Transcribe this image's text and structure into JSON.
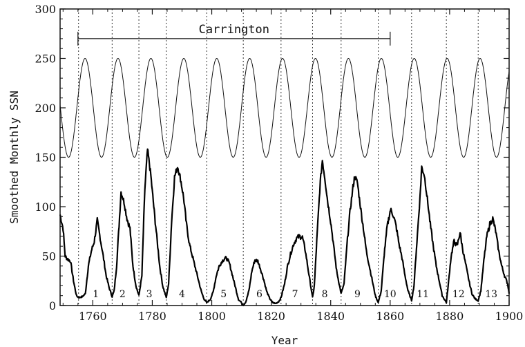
{
  "chart_data": {
    "type": "line",
    "title": "",
    "xlabel": "Year",
    "ylabel": "Smoothed Monthly SSN",
    "xlim": [
      1749,
      1900
    ],
    "ylim": [
      0,
      300
    ],
    "x_ticks": [
      1760,
      1780,
      1800,
      1820,
      1840,
      1860,
      1880,
      1900
    ],
    "x_tick_labels": [
      "1760",
      "1780",
      "1800",
      "1820",
      "1840",
      "1860",
      "1880",
      "1900"
    ],
    "y_ticks": [
      0,
      50,
      100,
      150,
      200,
      250,
      300
    ],
    "y_tick_labels": [
      "0",
      "50",
      "100",
      "150",
      "200",
      "250",
      "300"
    ],
    "grid": false,
    "cycle_boundaries": [
      1755.2,
      1766.5,
      1775.5,
      1784.7,
      1798.3,
      1810.6,
      1823.3,
      1833.9,
      1843.5,
      1856.0,
      1867.2,
      1878.9,
      1889.6
    ],
    "cycles": [
      {
        "label": "1",
        "x": 1761
      },
      {
        "label": "2",
        "x": 1770
      },
      {
        "label": "3",
        "x": 1779
      },
      {
        "label": "4",
        "x": 1790
      },
      {
        "label": "5",
        "x": 1804
      },
      {
        "label": "6",
        "x": 1816
      },
      {
        "label": "7",
        "x": 1828
      },
      {
        "label": "8",
        "x": 1838
      },
      {
        "label": "9",
        "x": 1849
      },
      {
        "label": "10",
        "x": 1860
      },
      {
        "label": "11",
        "x": 1871
      },
      {
        "label": "12",
        "x": 1883
      },
      {
        "label": "13",
        "x": 1894
      }
    ],
    "annotation": {
      "label": "Carrington",
      "x_start": 1755,
      "x_end": 1860,
      "y": 270
    },
    "sinusoid": {
      "center": 200,
      "amplitude": 50,
      "period": 11.07,
      "peak_year": 1757.4
    },
    "series": [
      {
        "x": [
          1749.0,
          1750.0,
          1750.7,
          1751.5,
          1752.5,
          1753.5,
          1754.5,
          1755.2,
          1756.5,
          1757.5,
          1758.5,
          1759.5,
          1760.5,
          1761.5,
          1762.5,
          1763.5,
          1764.5,
          1765.5,
          1766.5,
          1767.2,
          1768.0,
          1769.0,
          1769.5,
          1770.5,
          1771.5,
          1772.5,
          1773.5,
          1774.5,
          1775.5,
          1776.5,
          1777.5,
          1778.4,
          1779.5,
          1780.5,
          1781.5,
          1782.5,
          1783.5,
          1784.7,
          1785.5,
          1786.5,
          1787.5,
          1788.5,
          1789.5,
          1790.5,
          1791.5,
          1792.5,
          1793.5,
          1794.5,
          1795.5,
          1796.5,
          1797.5,
          1798.3,
          1799.5,
          1800.5,
          1801.5,
          1802.5,
          1803.5,
          1804.5,
          1805.2,
          1806.0,
          1807.0,
          1808.0,
          1809.0,
          1810.0,
          1810.6,
          1811.5,
          1812.5,
          1813.5,
          1814.5,
          1815.5,
          1816.3,
          1817.5,
          1818.5,
          1819.5,
          1820.5,
          1821.5,
          1822.5,
          1823.3,
          1824.5,
          1825.5,
          1826.5,
          1827.5,
          1828.5,
          1829.5,
          1830.5,
          1831.5,
          1832.5,
          1833.9,
          1834.5,
          1835.5,
          1836.5,
          1837.2,
          1838.0,
          1839.0,
          1840.0,
          1841.0,
          1842.0,
          1843.5,
          1844.5,
          1845.5,
          1846.5,
          1847.5,
          1848.1,
          1849.0,
          1850.0,
          1851.0,
          1852.0,
          1853.0,
          1854.0,
          1855.0,
          1856.0,
          1857.0,
          1858.0,
          1859.0,
          1860.1,
          1861.0,
          1862.0,
          1863.0,
          1864.0,
          1865.0,
          1866.0,
          1867.2,
          1868.0,
          1869.0,
          1870.0,
          1870.6,
          1871.5,
          1872.5,
          1873.5,
          1874.5,
          1875.5,
          1876.5,
          1877.5,
          1878.9,
          1879.5,
          1880.5,
          1881.5,
          1882.5,
          1883.5,
          1884.5,
          1885.5,
          1886.5,
          1887.5,
          1888.5,
          1889.6,
          1890.5,
          1891.5,
          1892.5,
          1893.5,
          1894.5,
          1895.5,
          1896.5,
          1897.5,
          1898.5,
          1899.5,
          1900.0
        ],
        "y": [
          92,
          78,
          50,
          47,
          45,
          25,
          10,
          8,
          9,
          12,
          40,
          55,
          65,
          86,
          68,
          50,
          30,
          18,
          9,
          15,
          40,
          90,
          115,
          105,
          88,
          78,
          40,
          20,
          10,
          30,
          118,
          158,
          132,
          100,
          70,
          40,
          20,
          8,
          22,
          85,
          130,
          141,
          128,
          110,
          82,
          62,
          50,
          38,
          26,
          14,
          6,
          3,
          6,
          14,
          30,
          40,
          45,
          48,
          47,
          42,
          30,
          18,
          6,
          3,
          0,
          4,
          15,
          35,
          46,
          45,
          38,
          26,
          14,
          7,
          3,
          2,
          4,
          8,
          22,
          40,
          52,
          62,
          68,
          70,
          69,
          55,
          35,
          8,
          20,
          75,
          125,
          147,
          130,
          105,
          85,
          60,
          35,
          12,
          22,
          62,
          95,
          120,
          131,
          124,
          100,
          78,
          55,
          40,
          25,
          10,
          3,
          15,
          52,
          80,
          97,
          92,
          80,
          62,
          48,
          30,
          15,
          5,
          20,
          65,
          108,
          140,
          132,
          108,
          82,
          60,
          40,
          25,
          10,
          3,
          20,
          50,
          65,
          60,
          74,
          55,
          40,
          25,
          12,
          7,
          5,
          15,
          45,
          70,
          82,
          88,
          75,
          55,
          40,
          30,
          22,
          12
        ]
      }
    ]
  }
}
